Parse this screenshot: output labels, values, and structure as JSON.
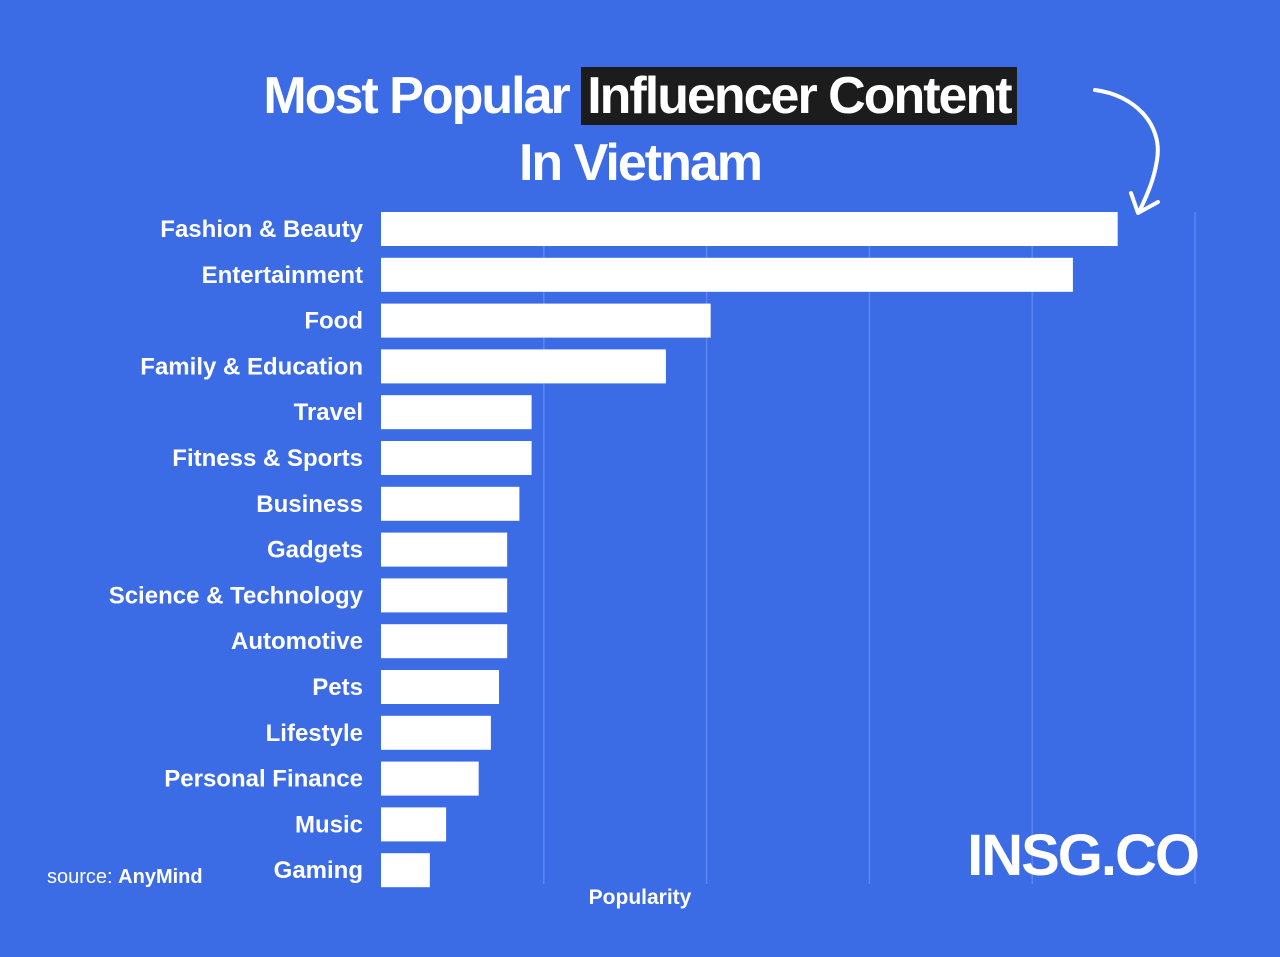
{
  "colors": {
    "background": "#3c6be6",
    "bar": "#ffffff",
    "grid": "#5b86f0",
    "title_highlight": "#1c1c1c",
    "text": "#ffffff"
  },
  "title": {
    "part1": "Most Popular",
    "highlight": "Influencer Content",
    "line2": "In Vietnam"
  },
  "source": {
    "prefix": "source:",
    "name": "AnyMind"
  },
  "brand": "INSG.CO",
  "chart_data": {
    "type": "bar",
    "orientation": "horizontal",
    "title": "Most Popular Influencer Content In Vietnam",
    "xlabel": "Popularity",
    "ylabel": "",
    "grid": true,
    "xlim": [
      0,
      100
    ],
    "categories": [
      "Fashion & Beauty",
      "Entertainment",
      "Food",
      "Family & Education",
      "Travel",
      "Fitness & Sports",
      "Business",
      "Gadgets",
      "Science & Technology",
      "Automotive",
      "Pets",
      "Lifestyle",
      "Personal Finance",
      "Music",
      "Gaming"
    ],
    "values": [
      90.5,
      85,
      40.5,
      35,
      18.5,
      18.5,
      17,
      15.5,
      15.5,
      15.5,
      14.5,
      13.5,
      12,
      8,
      6
    ]
  }
}
